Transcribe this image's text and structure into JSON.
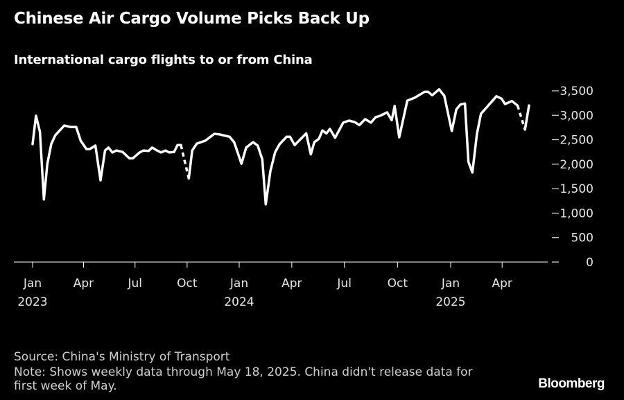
{
  "chart_data": {
    "type": "line",
    "title": "Chinese Air Cargo Volume Picks Back Up",
    "subtitle": "International cargo flights to or from China",
    "xlabel": "",
    "ylabel": "",
    "ylim": [
      0,
      3500
    ],
    "yticks": [
      {
        "value": 0,
        "label": "0"
      },
      {
        "value": 500,
        "label": "500"
      },
      {
        "value": 1000,
        "label": "1,000"
      },
      {
        "value": 1500,
        "label": "1,500"
      },
      {
        "value": 2000,
        "label": "2,000"
      },
      {
        "value": 2500,
        "label": "2,500"
      },
      {
        "value": 3000,
        "label": "3,000"
      },
      {
        "value": 3500,
        "label": "3,500"
      }
    ],
    "xticks": [
      {
        "date": "2023-01-01",
        "label": "Jan",
        "year": "2023"
      },
      {
        "date": "2023-04-01",
        "label": "Apr"
      },
      {
        "date": "2023-07-01",
        "label": "Jul"
      },
      {
        "date": "2023-10-01",
        "label": "Oct"
      },
      {
        "date": "2024-01-01",
        "label": "Jan",
        "year": "2024"
      },
      {
        "date": "2024-04-01",
        "label": "Apr"
      },
      {
        "date": "2024-07-01",
        "label": "Jul"
      },
      {
        "date": "2024-10-01",
        "label": "Oct"
      },
      {
        "date": "2025-01-01",
        "label": "Jan",
        "year": "2025"
      },
      {
        "date": "2025-04-01",
        "label": "Apr"
      }
    ],
    "grid": false,
    "line_color": "#ffffff",
    "segments": [
      {
        "style": "solid",
        "points": [
          [
            "2023-01-01",
            2410
          ],
          [
            "2023-01-07",
            2990
          ],
          [
            "2023-01-14",
            2660
          ],
          [
            "2023-01-21",
            1280
          ],
          [
            "2023-01-27",
            2000
          ],
          [
            "2023-02-03",
            2410
          ],
          [
            "2023-02-10",
            2590
          ],
          [
            "2023-02-26",
            2790
          ],
          [
            "2023-03-09",
            2760
          ],
          [
            "2023-03-19",
            2760
          ],
          [
            "2023-03-27",
            2480
          ],
          [
            "2023-04-06",
            2310
          ],
          [
            "2023-04-12",
            2310
          ],
          [
            "2023-04-22",
            2380
          ],
          [
            "2023-05-01",
            1670
          ],
          [
            "2023-05-09",
            2280
          ],
          [
            "2023-05-15",
            2340
          ],
          [
            "2023-05-22",
            2240
          ],
          [
            "2023-05-29",
            2280
          ],
          [
            "2023-06-09",
            2250
          ],
          [
            "2023-06-21",
            2120
          ],
          [
            "2023-06-27",
            2120
          ],
          [
            "2023-07-09",
            2240
          ],
          [
            "2023-07-16",
            2280
          ],
          [
            "2023-07-25",
            2270
          ],
          [
            "2023-07-31",
            2340
          ],
          [
            "2023-08-09",
            2280
          ],
          [
            "2023-08-16",
            2240
          ],
          [
            "2023-08-24",
            2280
          ],
          [
            "2023-08-30",
            2240
          ],
          [
            "2023-09-08",
            2250
          ],
          [
            "2023-09-14",
            2390
          ],
          [
            "2023-09-20",
            2390
          ]
        ]
      },
      {
        "style": "dashed",
        "points": [
          [
            "2023-09-20",
            2390
          ],
          [
            "2023-10-04",
            1710
          ]
        ]
      },
      {
        "style": "solid",
        "points": [
          [
            "2023-10-04",
            1710
          ],
          [
            "2023-10-10",
            2280
          ],
          [
            "2023-10-18",
            2420
          ],
          [
            "2023-11-02",
            2480
          ],
          [
            "2023-11-18",
            2620
          ],
          [
            "2023-11-27",
            2610
          ],
          [
            "2023-12-15",
            2560
          ],
          [
            "2023-12-23",
            2450
          ],
          [
            "2024-01-05",
            2010
          ],
          [
            "2024-01-13",
            2340
          ],
          [
            "2024-01-25",
            2450
          ],
          [
            "2024-02-02",
            2380
          ],
          [
            "2024-02-10",
            2100
          ],
          [
            "2024-02-16",
            1180
          ],
          [
            "2024-02-24",
            1860
          ],
          [
            "2024-03-03",
            2240
          ],
          [
            "2024-03-11",
            2410
          ],
          [
            "2024-03-23",
            2560
          ],
          [
            "2024-03-29",
            2560
          ],
          [
            "2024-04-06",
            2390
          ],
          [
            "2024-04-26",
            2630
          ],
          [
            "2024-05-04",
            2200
          ],
          [
            "2024-05-10",
            2450
          ],
          [
            "2024-05-18",
            2520
          ],
          [
            "2024-05-24",
            2690
          ],
          [
            "2024-05-31",
            2630
          ],
          [
            "2024-06-06",
            2720
          ],
          [
            "2024-06-15",
            2540
          ],
          [
            "2024-06-29",
            2850
          ],
          [
            "2024-07-09",
            2890
          ],
          [
            "2024-07-19",
            2860
          ],
          [
            "2024-07-27",
            2800
          ],
          [
            "2024-08-06",
            2920
          ],
          [
            "2024-08-16",
            2850
          ],
          [
            "2024-08-24",
            2960
          ],
          [
            "2024-09-01",
            2990
          ],
          [
            "2024-09-13",
            3060
          ],
          [
            "2024-09-21",
            2900
          ],
          [
            "2024-09-26",
            3190
          ],
          [
            "2024-10-04",
            2550
          ],
          [
            "2024-10-18",
            3300
          ],
          [
            "2024-10-31",
            3360
          ],
          [
            "2024-11-17",
            3480
          ],
          [
            "2024-11-23",
            3480
          ],
          [
            "2024-11-30",
            3410
          ],
          [
            "2024-12-12",
            3530
          ],
          [
            "2024-12-21",
            3400
          ],
          [
            "2025-01-03",
            2680
          ],
          [
            "2025-01-11",
            3120
          ],
          [
            "2025-01-18",
            3220
          ],
          [
            "2025-01-26",
            3240
          ],
          [
            "2025-02-01",
            2050
          ],
          [
            "2025-02-08",
            1830
          ],
          [
            "2025-02-16",
            2620
          ],
          [
            "2025-02-23",
            3030
          ],
          [
            "2025-03-22",
            3390
          ],
          [
            "2025-03-31",
            3340
          ],
          [
            "2025-04-06",
            3230
          ],
          [
            "2025-04-18",
            3290
          ],
          [
            "2025-04-28",
            3200
          ]
        ]
      },
      {
        "style": "dashed",
        "points": [
          [
            "2025-04-28",
            3200
          ],
          [
            "2025-05-11",
            2710
          ]
        ]
      },
      {
        "style": "solid",
        "points": [
          [
            "2025-05-11",
            2710
          ],
          [
            "2025-05-18",
            3200
          ]
        ]
      }
    ]
  },
  "footer": {
    "source": "Source: China's Ministry of Transport",
    "note": "Note: Shows weekly data through May 18, 2025. China didn't release data for first week of May."
  },
  "brand": {
    "logo_text": "Bloomberg"
  }
}
